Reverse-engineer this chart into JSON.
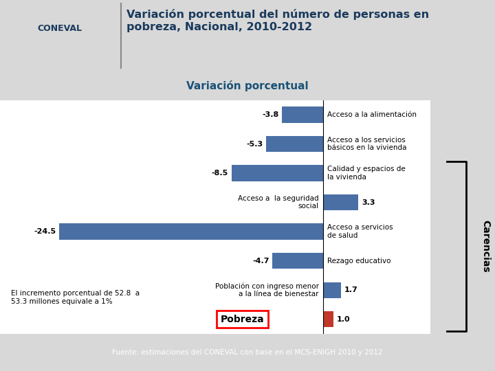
{
  "title_main": "Variación porcentual del número de personas en\npobreza, Nacional, 2010-2012",
  "subtitle": "Variación porcentual",
  "categories": [
    "Pobreza",
    "Población con ingreso menor\na la línea de bienestar",
    "Rezago educativo",
    "Acceso a servicios\nde salud",
    "Acceso a  la seguridad\nsocial",
    "Calidad y espacios de\nla vivienda",
    "Acceso a los servicios\nbásicos en la vivienda",
    "Acceso a la alimentación"
  ],
  "values": [
    1.0,
    1.7,
    -4.7,
    -24.5,
    3.3,
    -8.5,
    -5.3,
    -3.8
  ],
  "bar_colors": [
    "#c0392b",
    "#4a6fa5",
    "#4a6fa5",
    "#4a6fa5",
    "#4a6fa5",
    "#4a6fa5",
    "#4a6fa5",
    "#4a6fa5"
  ],
  "annotation_text": "El incremento porcentual de 52.8  a\n53.3 millones equivale a 1%",
  "source_text": "Fuente: estimaciones del CONEVAL con base en el MCS-ENIGH 2010 y 2012",
  "carencias_label": "Carencias",
  "title_color": "#1a3a5c",
  "subtitle_color": "#1a5276",
  "footer_color": "#3cb371",
  "bg_color": "#d8d8d8",
  "chart_bg": "#ffffff"
}
